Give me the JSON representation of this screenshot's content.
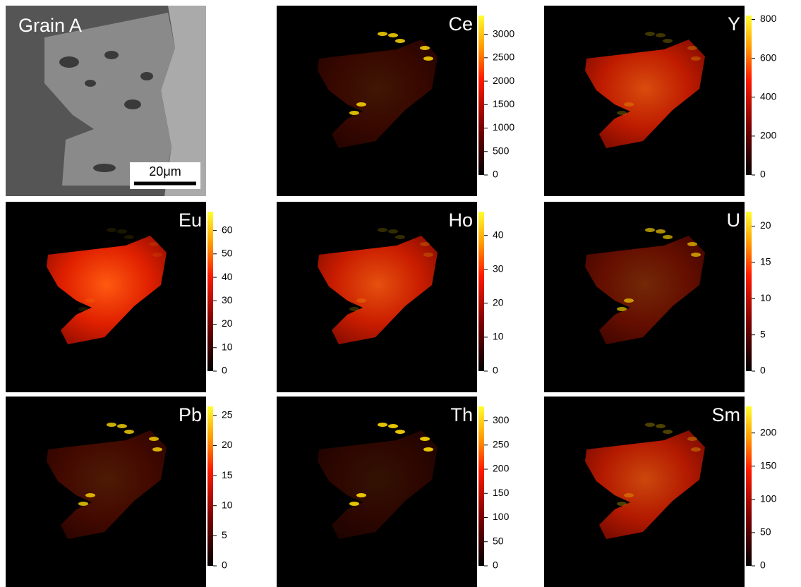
{
  "chart_data": [
    {
      "type": "image",
      "title": "Grain A",
      "annotation": "20μm"
    },
    {
      "type": "heatmap",
      "title": "Ce",
      "clim": [
        0,
        3400
      ],
      "cticks": [
        0,
        500,
        1000,
        1500,
        2000,
        2500,
        3000
      ]
    },
    {
      "type": "heatmap",
      "title": "Y",
      "clim": [
        0,
        820
      ],
      "cticks": [
        0,
        200,
        400,
        600,
        800
      ]
    },
    {
      "type": "heatmap",
      "title": "Eu",
      "clim": [
        0,
        68
      ],
      "cticks": [
        0,
        10,
        20,
        30,
        40,
        50,
        60
      ]
    },
    {
      "type": "heatmap",
      "title": "Ho",
      "clim": [
        0,
        47
      ],
      "cticks": [
        0,
        10,
        20,
        30,
        40
      ]
    },
    {
      "type": "heatmap",
      "title": "U",
      "clim": [
        0,
        22
      ],
      "cticks": [
        0,
        5,
        10,
        15,
        20
      ]
    },
    {
      "type": "heatmap",
      "title": "Pb",
      "clim": [
        0,
        26.5
      ],
      "cticks": [
        0,
        5,
        10,
        15,
        20,
        25
      ]
    },
    {
      "type": "heatmap",
      "title": "Th",
      "clim": [
        0,
        330
      ],
      "cticks": [
        0,
        50,
        100,
        150,
        200,
        250,
        300
      ]
    },
    {
      "type": "heatmap",
      "title": "Sm",
      "clim": [
        0,
        240
      ],
      "cticks": [
        0,
        50,
        100,
        150,
        200
      ]
    }
  ]
}
